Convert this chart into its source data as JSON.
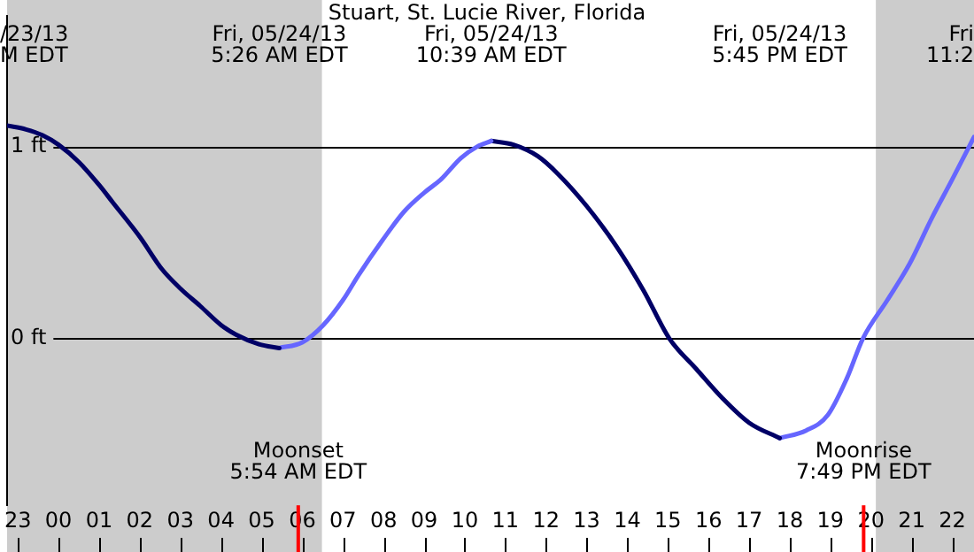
{
  "chart_data": {
    "type": "line",
    "title": "Stuart, St. Lucie River, Florida",
    "xlim": [
      "--05-23T22:44",
      "--05-24T22:32"
    ],
    "xticks": [
      {
        "value": "--05-23T23:00",
        "label": "23"
      },
      {
        "value": "--05-24T00:00",
        "label": "00"
      },
      {
        "value": "--05-24T01:00",
        "label": "01"
      },
      {
        "value": "--05-24T02:00",
        "label": "02"
      },
      {
        "value": "--05-24T03:00",
        "label": "03"
      },
      {
        "value": "--05-24T04:00",
        "label": "04"
      },
      {
        "value": "--05-24T05:00",
        "label": "05"
      },
      {
        "value": "--05-24T06:00",
        "label": "06"
      },
      {
        "value": "--05-24T07:00",
        "label": "07"
      },
      {
        "value": "--05-24T08:00",
        "label": "08"
      },
      {
        "value": "--05-24T09:00",
        "label": "09"
      },
      {
        "value": "--05-24T10:00",
        "label": "10"
      },
      {
        "value": "--05-24T11:00",
        "label": "11"
      },
      {
        "value": "--05-24T12:00",
        "label": "12"
      },
      {
        "value": "--05-24T13:00",
        "label": "13"
      },
      {
        "value": "--05-24T14:00",
        "label": "14"
      },
      {
        "value": "--05-24T15:00",
        "label": "15"
      },
      {
        "value": "--05-24T16:00",
        "label": "16"
      },
      {
        "value": "--05-24T17:00",
        "label": "17"
      },
      {
        "value": "--05-24T18:00",
        "label": "18"
      },
      {
        "value": "--05-24T19:00",
        "label": "19"
      },
      {
        "value": "--05-24T20:00",
        "label": "20"
      },
      {
        "value": "--05-24T21:00",
        "label": "21"
      },
      {
        "value": "--05-24T22:00",
        "label": "22"
      }
    ],
    "ylim": [
      -0.87,
      1.68
    ],
    "yticks": [
      {
        "value": 0,
        "label": "0 ft"
      },
      {
        "value": 1,
        "label": "1 ft"
      }
    ],
    "grid": "y",
    "legend": false,
    "marker": "none",
    "line_style": "solid",
    "series": [
      {
        "color": "#000066",
        "x": [
          "--05-23T22:44",
          "--05-23T23:12",
          "--05-23T23:36",
          "--05-24T00:00",
          "--05-24T00:30",
          "--05-24T01:00",
          "--05-24T01:20",
          "--05-24T02:00",
          "--05-24T02:33",
          "--05-24T03:00",
          "--05-24T03:29",
          "--05-24T04:00",
          "--05-24T04:22",
          "--05-24T04:56",
          "--05-24T05:26"
        ],
        "values": [
          1.11,
          1.09,
          1.06,
          1.01,
          0.92,
          0.8,
          0.71,
          0.53,
          0.36,
          0.26,
          0.17,
          0.07,
          0.02,
          -0.03,
          -0.05
        ]
      },
      {
        "color": "#6666ff",
        "x": [
          "--05-24T05:26",
          "--05-24T06:00",
          "--05-24T06:31",
          "--05-24T07:00",
          "--05-24T07:23",
          "--05-24T07:58",
          "--05-24T08:30",
          "--05-24T09:00",
          "--05-24T09:25",
          "--05-24T09:54",
          "--05-24T10:18",
          "--05-24T10:39"
        ],
        "values": [
          -0.05,
          -0.02,
          0.07,
          0.2,
          0.33,
          0.51,
          0.66,
          0.76,
          0.83,
          0.94,
          1.0,
          1.03
        ]
      },
      {
        "color": "#000066",
        "x": [
          "--05-24T10:39",
          "--05-24T11:12",
          "--05-24T11:48",
          "--05-24T12:17",
          "--05-24T13:00",
          "--05-24T13:44",
          "--05-24T14:24",
          "--05-24T15:02",
          "--05-24T15:42",
          "--05-24T16:20",
          "--05-24T17:00",
          "--05-24T17:45"
        ],
        "values": [
          1.03,
          1.01,
          0.95,
          0.86,
          0.69,
          0.48,
          0.25,
          0,
          -0.16,
          -0.31,
          -0.44,
          -0.52
        ]
      },
      {
        "color": "#6666ff",
        "x": [
          "--05-24T17:45",
          "--05-24T18:24",
          "--05-24T18:56",
          "--05-24T19:24",
          "--05-24T19:48",
          "--05-24T20:24",
          "--05-24T20:57",
          "--05-24T21:30",
          "--05-24T22:00",
          "--05-24T22:32"
        ],
        "values": [
          -0.52,
          -0.48,
          -0.4,
          -0.21,
          0,
          0.2,
          0.39,
          0.63,
          0.83,
          1.05
        ]
      }
    ],
    "bands": [
      {
        "axis": "x",
        "from": "--05-23T22:44",
        "to": "--05-24T06:29",
        "color": "#cccccc"
      },
      {
        "axis": "x",
        "from": "--05-24T20:07",
        "to": "--05-24T22:32",
        "color": "#cccccc"
      }
    ],
    "ref_lines": [
      {
        "axis": "x",
        "value": "--05-24T05:54",
        "label": "Moonset\n5:54 AM EDT",
        "color": "#ff0000"
      },
      {
        "axis": "x",
        "value": "--05-24T19:49",
        "label": "Moonrise\n7:49 PM EDT",
        "color": "#ff0000"
      }
    ],
    "annotations": [
      "/23/13\nM EDT",
      "Fri, 05/24/13\n5:26 AM EDT",
      "Fri, 05/24/13\n10:39 AM EDT",
      "Fri, 05/24/13\n5:45 PM EDT",
      "Fri\n11:2"
    ]
  }
}
